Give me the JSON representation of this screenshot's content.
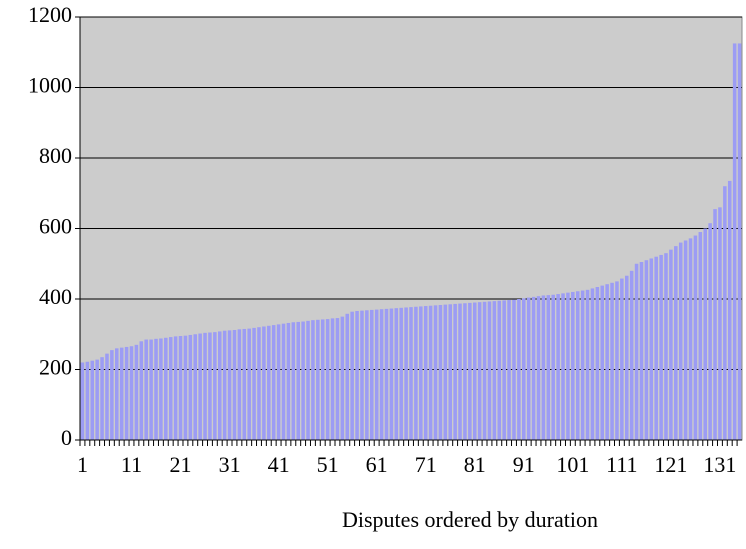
{
  "chart_data": {
    "type": "bar",
    "x_label": "Disputes ordered by duration",
    "categories": [
      "1",
      null,
      null,
      null,
      null,
      null,
      null,
      null,
      null,
      null,
      "11",
      null,
      null,
      null,
      null,
      null,
      null,
      null,
      null,
      null,
      "21",
      null,
      null,
      null,
      null,
      null,
      null,
      null,
      null,
      null,
      "31",
      null,
      null,
      null,
      null,
      null,
      null,
      null,
      null,
      null,
      "41",
      null,
      null,
      null,
      null,
      null,
      null,
      null,
      null,
      null,
      "51",
      null,
      null,
      null,
      null,
      null,
      null,
      null,
      null,
      null,
      "61",
      null,
      null,
      null,
      null,
      null,
      null,
      null,
      null,
      null,
      "71",
      null,
      null,
      null,
      null,
      null,
      null,
      null,
      null,
      null,
      "81",
      null,
      null,
      null,
      null,
      null,
      null,
      null,
      null,
      null,
      "91",
      null,
      null,
      null,
      null,
      null,
      null,
      null,
      null,
      null,
      "101",
      null,
      null,
      null,
      null,
      null,
      null,
      null,
      null,
      null,
      "111",
      null,
      null,
      null,
      null,
      null,
      null,
      null,
      null,
      null,
      "121",
      null,
      null,
      null,
      null,
      null,
      null,
      null,
      null,
      null,
      "131",
      null,
      null,
      null,
      null
    ],
    "values": [
      220,
      222,
      225,
      228,
      235,
      245,
      255,
      260,
      262,
      264,
      266,
      270,
      280,
      285,
      285,
      287,
      288,
      290,
      292,
      294,
      295,
      296,
      298,
      300,
      302,
      304,
      305,
      306,
      308,
      310,
      311,
      312,
      314,
      315,
      316,
      318,
      320,
      322,
      324,
      326,
      328,
      330,
      332,
      334,
      335,
      336,
      338,
      340,
      341,
      342,
      343,
      345,
      346,
      350,
      358,
      364,
      366,
      367,
      368,
      369,
      370,
      371,
      372,
      373,
      374,
      375,
      376,
      377,
      378,
      379,
      380,
      381,
      382,
      383,
      384,
      385,
      386,
      387,
      388,
      389,
      390,
      391,
      392,
      393,
      394,
      395,
      396,
      397,
      398,
      400,
      402,
      404,
      406,
      408,
      410,
      411,
      412,
      414,
      416,
      418,
      420,
      422,
      424,
      426,
      430,
      434,
      438,
      442,
      446,
      450,
      458,
      466,
      480,
      500,
      505,
      510,
      515,
      520,
      525,
      530,
      540,
      550,
      560,
      566,
      572,
      580,
      590,
      600,
      615,
      655,
      660,
      720,
      735,
      1125,
      1125
    ],
    "color": "#9c9cf4",
    "ylim": [
      0,
      1200
    ],
    "yticks": [
      0,
      200,
      400,
      600,
      800,
      1000,
      1200
    ],
    "grid": true
  }
}
